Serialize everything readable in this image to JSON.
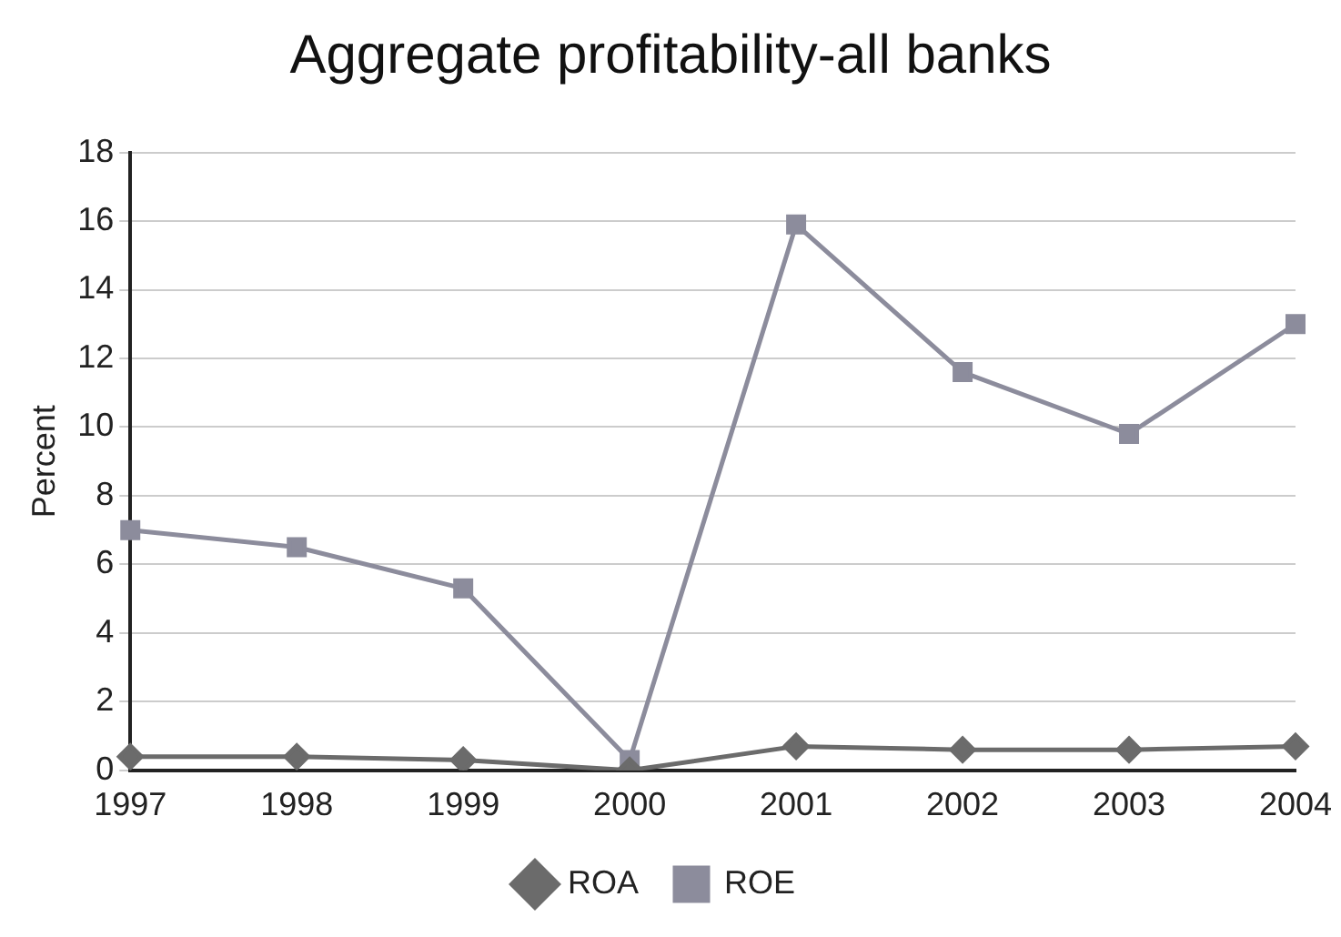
{
  "chart_data": {
    "type": "line",
    "title": "Aggregate profitability-all banks",
    "ylabel": "Percent",
    "categories": [
      "1997",
      "1998",
      "1999",
      "2000",
      "2001",
      "2002",
      "2003",
      "2004"
    ],
    "series": [
      {
        "name": "ROA",
        "color": "#6b6b6b",
        "marker": "diamond",
        "values": [
          0.4,
          0.4,
          0.3,
          0.0,
          0.7,
          0.6,
          0.6,
          0.7
        ]
      },
      {
        "name": "ROE",
        "color": "#8c8c9c",
        "marker": "square",
        "values": [
          7.0,
          6.5,
          5.3,
          0.3,
          15.9,
          11.6,
          9.8,
          13.0
        ]
      }
    ],
    "ylim": [
      0,
      18
    ],
    "yticks": [
      0,
      2,
      4,
      6,
      8,
      10,
      12,
      14,
      16,
      18
    ],
    "grid": "y",
    "legend": "bottom"
  }
}
